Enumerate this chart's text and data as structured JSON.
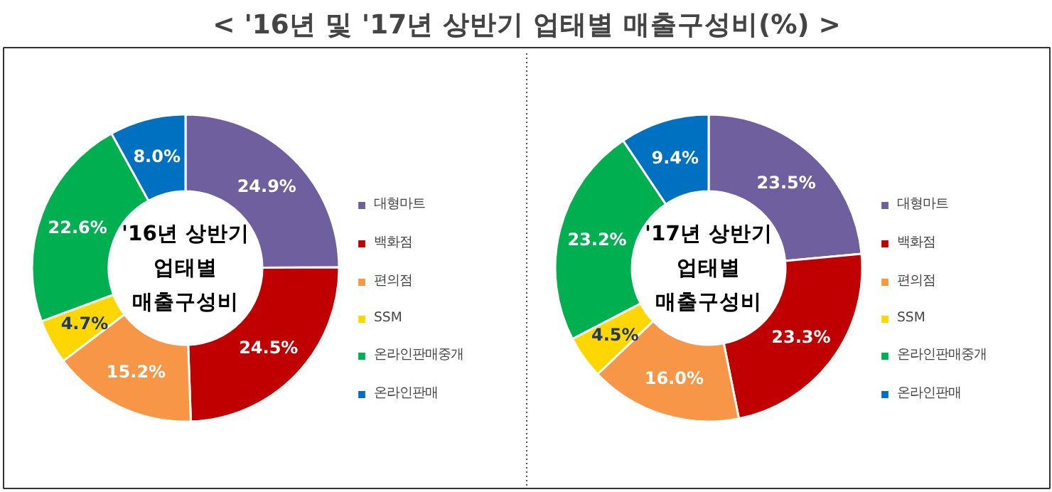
{
  "chart_data": [
    {
      "type": "donut",
      "title": "< '16년 및 '17년 상반기 업태별 매출구성비(%) >",
      "annotations": [
        "'16년 상반기",
        "업태별",
        "매출구성비"
      ],
      "legend": "right",
      "categories": [
        "대형마트",
        "백화점",
        "편의점",
        "SSM",
        "온라인판매중개",
        "온라인판매"
      ],
      "values": [
        24.9,
        24.5,
        15.2,
        4.7,
        22.6,
        8.0
      ],
      "value_labels": [
        "24.9%",
        "24.5%",
        "15.2%",
        "4.7%",
        "22.6%",
        "8.0%"
      ],
      "colors": [
        "#6f5f9f",
        "#c00000",
        "#f79646",
        "#ffd700",
        "#00b050",
        "#0070c0"
      ]
    },
    {
      "type": "donut",
      "annotations": [
        "'17년 상반기",
        "업태별",
        "매출구성비"
      ],
      "legend": "right",
      "categories": [
        "대형마트",
        "백화점",
        "편의점",
        "SSM",
        "온라인판매중개",
        "온라인판매"
      ],
      "values": [
        23.5,
        23.3,
        16.0,
        4.5,
        23.2,
        9.4
      ],
      "value_labels": [
        "23.5%",
        "23.3%",
        "16.0%",
        "4.5%",
        "23.2%",
        "9.4%"
      ],
      "colors": [
        "#6f5f9f",
        "#c00000",
        "#f79646",
        "#ffd700",
        "#00b050",
        "#0070c0"
      ]
    }
  ]
}
